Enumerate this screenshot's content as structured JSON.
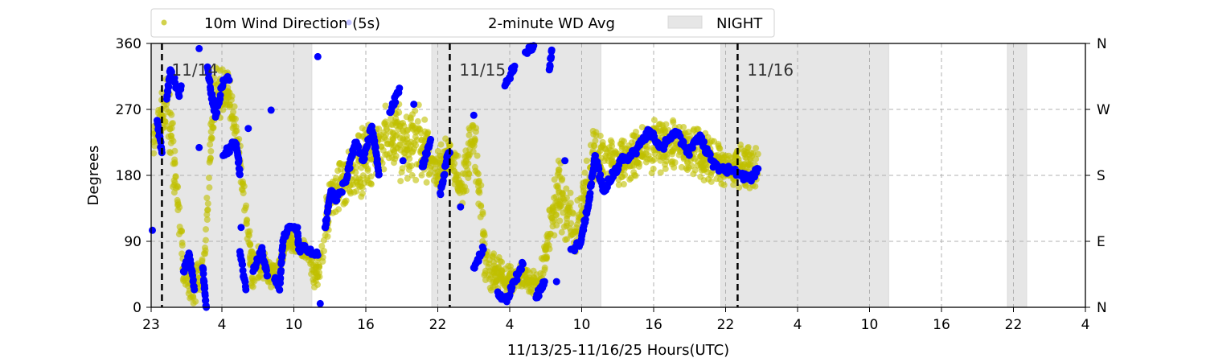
{
  "chart_data": {
    "type": "scatter",
    "xlabel": "11/13/25-11/16/25  Hours(UTC)",
    "ylabel": "Degrees",
    "xlim_hours_from_1113_0000": [
      22.1,
      100
    ],
    "ylim": [
      0,
      360
    ],
    "x_ticks": [
      {
        "h": 22.1,
        "label": "23"
      },
      {
        "h": 28,
        "label": "4"
      },
      {
        "h": 34,
        "label": "10"
      },
      {
        "h": 40,
        "label": "16"
      },
      {
        "h": 46,
        "label": "22"
      },
      {
        "h": 52,
        "label": "4"
      },
      {
        "h": 58,
        "label": "10"
      },
      {
        "h": 64,
        "label": "16"
      },
      {
        "h": 70,
        "label": "22"
      },
      {
        "h": 76,
        "label": "4"
      },
      {
        "h": 82,
        "label": "10"
      },
      {
        "h": 88,
        "label": "16"
      },
      {
        "h": 94,
        "label": "22"
      },
      {
        "h": 100,
        "label": "4"
      }
    ],
    "y_ticks": [
      0,
      90,
      180,
      270,
      360
    ],
    "y_ticks_right": [
      {
        "v": 0,
        "label": "N"
      },
      {
        "v": 90,
        "label": "E"
      },
      {
        "v": 180,
        "label": "S"
      },
      {
        "v": 270,
        "label": "W"
      },
      {
        "v": 360,
        "label": "N"
      }
    ],
    "grid": true,
    "legend": {
      "placement": "top",
      "entries": [
        "10m Wind Direction (5s)",
        "2-minute WD Avg",
        "NIGHT"
      ]
    },
    "day_markers": [
      {
        "h": 23,
        "label": "11/14"
      },
      {
        "h": 47,
        "label": "11/15"
      },
      {
        "h": 71,
        "label": "11/16"
      }
    ],
    "night_periods": [
      [
        22.1,
        35.5
      ],
      [
        45.5,
        59.6
      ],
      [
        69.6,
        83.6
      ],
      [
        93.5,
        95.1
      ]
    ],
    "colors": {
      "wd_5s": "#bfbf00",
      "wd_2min": "#0000ff",
      "night": "#e6e6e6",
      "grid": "#b0b0b0"
    },
    "wd_5s_envelope": [
      [
        22.3,
        200,
        260
      ],
      [
        23.5,
        230,
        330
      ],
      [
        24.8,
        20,
        80
      ],
      [
        25.7,
        0,
        60
      ],
      [
        26.5,
        30,
        80
      ],
      [
        27.3,
        240,
        330
      ],
      [
        28.5,
        270,
        330
      ],
      [
        29.5,
        180,
        240
      ],
      [
        30.5,
        20,
        80
      ],
      [
        31.5,
        30,
        90
      ],
      [
        32.5,
        20,
        60
      ],
      [
        33.5,
        80,
        110
      ],
      [
        35,
        60,
        90
      ],
      [
        36,
        0,
        80
      ],
      [
        37,
        110,
        180
      ],
      [
        38.5,
        140,
        220
      ],
      [
        40,
        150,
        260
      ],
      [
        41.5,
        170,
        290
      ],
      [
        43,
        170,
        280
      ],
      [
        44.5,
        170,
        280
      ],
      [
        46,
        150,
        220
      ],
      [
        47,
        180,
        240
      ],
      [
        48,
        120,
        200
      ],
      [
        49,
        200,
        290
      ],
      [
        50,
        20,
        100
      ],
      [
        51.5,
        10,
        60
      ],
      [
        53,
        20,
        60
      ],
      [
        54.5,
        10,
        50
      ],
      [
        56,
        100,
        220
      ],
      [
        57.5,
        60,
        140
      ],
      [
        59,
        150,
        260
      ],
      [
        60.5,
        160,
        230
      ],
      [
        62,
        170,
        240
      ],
      [
        64,
        180,
        260
      ],
      [
        66,
        180,
        260
      ],
      [
        68,
        170,
        250
      ],
      [
        70,
        160,
        220
      ],
      [
        72.7,
        150,
        230
      ]
    ],
    "wd_2min": [
      [
        22.2,
        105
      ],
      [
        22.6,
        255
      ],
      [
        23.0,
        211
      ],
      [
        23.4,
        284
      ],
      [
        23.7,
        324
      ],
      [
        24.4,
        291
      ],
      [
        24.6,
        302
      ],
      [
        24.8,
        49
      ],
      [
        25.3,
        71
      ],
      [
        25.7,
        24
      ],
      [
        26.1,
        353
      ],
      [
        26.1,
        218
      ],
      [
        26.4,
        54
      ],
      [
        26.7,
        0
      ],
      [
        26.8,
        328
      ],
      [
        27.1,
        291
      ],
      [
        27.5,
        262
      ],
      [
        28.1,
        310
      ],
      [
        28.6,
        310
      ],
      [
        28.1,
        207
      ],
      [
        29.1,
        225
      ],
      [
        29.3,
        211
      ],
      [
        29.5,
        181
      ],
      [
        29.6,
        109
      ],
      [
        29.5,
        76
      ],
      [
        30.0,
        24
      ],
      [
        30.2,
        244
      ],
      [
        30.6,
        49
      ],
      [
        31.3,
        79
      ],
      [
        31.8,
        43
      ],
      [
        32.1,
        269
      ],
      [
        32.4,
        38
      ],
      [
        32.8,
        24
      ],
      [
        33.1,
        90
      ],
      [
        33.5,
        109
      ],
      [
        34.3,
        109
      ],
      [
        34.4,
        79
      ],
      [
        35.3,
        79
      ],
      [
        36.0,
        71
      ],
      [
        36.0,
        342
      ],
      [
        36.2,
        5
      ],
      [
        36.6,
        109
      ],
      [
        37.1,
        159
      ],
      [
        37.5,
        145
      ],
      [
        38.4,
        175
      ],
      [
        39.1,
        225
      ],
      [
        39.8,
        200
      ],
      [
        40.5,
        247
      ],
      [
        41.1,
        181
      ],
      [
        42.0,
        266
      ],
      [
        42.8,
        299
      ],
      [
        43.1,
        200
      ],
      [
        44.0,
        277
      ],
      [
        44.7,
        192
      ],
      [
        45.4,
        229
      ],
      [
        46.2,
        156
      ],
      [
        46.9,
        211
      ],
      [
        47.0,
        211
      ],
      [
        47.9,
        137
      ],
      [
        49.0,
        262
      ],
      [
        49.0,
        54
      ],
      [
        49.8,
        79
      ],
      [
        51.6,
        302
      ],
      [
        52.4,
        329
      ],
      [
        51.0,
        21
      ],
      [
        51.7,
        10
      ],
      [
        53.1,
        59
      ],
      [
        53.3,
        348
      ],
      [
        54.0,
        357
      ],
      [
        54.2,
        13
      ],
      [
        54.9,
        35
      ],
      [
        55.3,
        324
      ],
      [
        55.5,
        351
      ],
      [
        55.9,
        35
      ],
      [
        56.6,
        200
      ],
      [
        57.1,
        79
      ],
      [
        57.9,
        87
      ],
      [
        58.6,
        145
      ],
      [
        59.1,
        207
      ],
      [
        59.8,
        159
      ],
      [
        61.3,
        200
      ],
      [
        62.4,
        211
      ],
      [
        63.6,
        240
      ],
      [
        64.7,
        218
      ],
      [
        65.8,
        240
      ],
      [
        66.9,
        211
      ],
      [
        67.8,
        233
      ],
      [
        69.1,
        192
      ],
      [
        70.7,
        186
      ],
      [
        72.0,
        175
      ],
      [
        72.7,
        189
      ]
    ]
  }
}
